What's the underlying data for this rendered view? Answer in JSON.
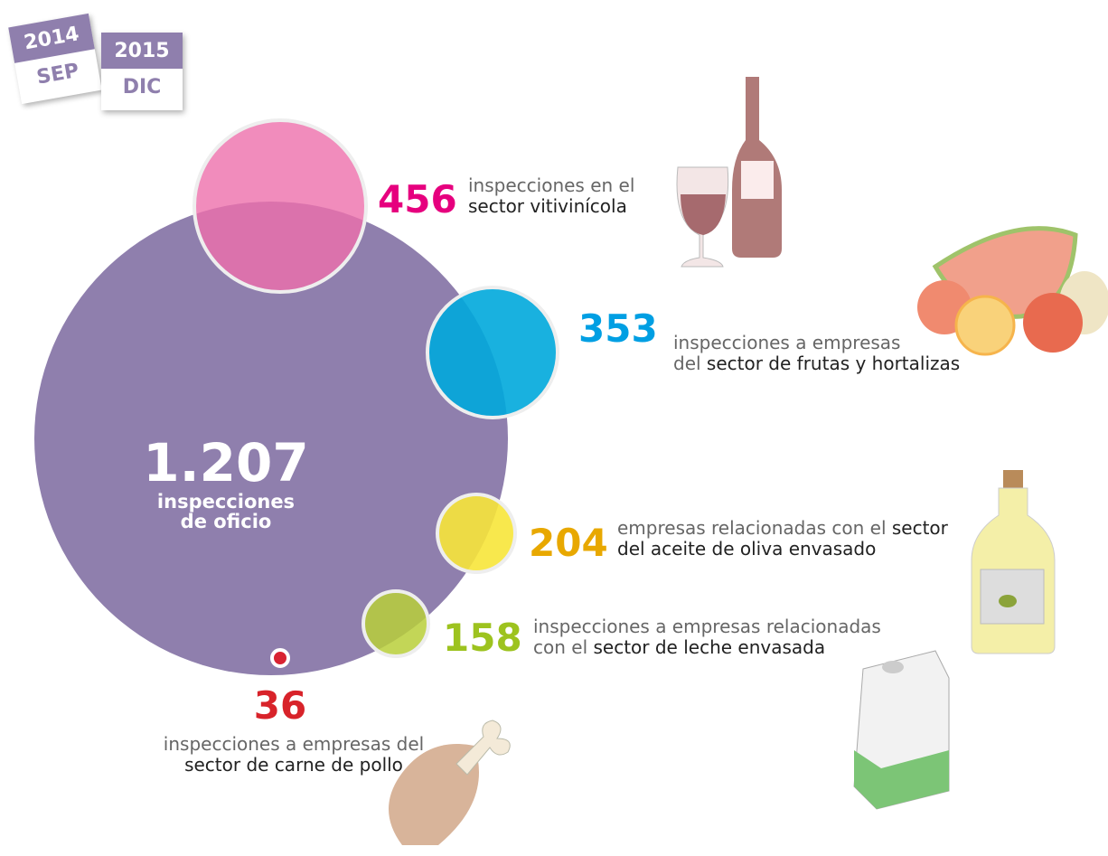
{
  "calendar": [
    {
      "year": "2014",
      "month": "SEP"
    },
    {
      "year": "2015",
      "month": "DIC"
    }
  ],
  "total": {
    "number": "1.207",
    "lines": [
      "inspecciones",
      "de oficio"
    ]
  },
  "items": [
    {
      "number": 456,
      "lines": [
        {
          "plain": "inspecciones en el"
        },
        {
          "highlight": "sector vitivinícola"
        }
      ]
    },
    {
      "number": 353,
      "lines": [
        {
          "plain": "inspecciones a empresas"
        },
        {
          "plain": "del ",
          "highlight": "sector de frutas y hortalizas"
        }
      ]
    },
    {
      "number": 204,
      "lines": [
        {
          "plain": "empresas relacionadas con el ",
          "highlight": "sector"
        },
        {
          "highlight": "del aceite de oliva envasado"
        }
      ]
    },
    {
      "number": 158,
      "lines": [
        {
          "plain": "inspecciones a empresas relacionadas"
        },
        {
          "plain": "con el ",
          "highlight": "sector de leche envasada"
        }
      ]
    },
    {
      "number": 36,
      "lines": [
        {
          "plain": "inspecciones a empresas del"
        },
        {
          "highlight": "sector de carne de pollo"
        }
      ]
    }
  ]
}
